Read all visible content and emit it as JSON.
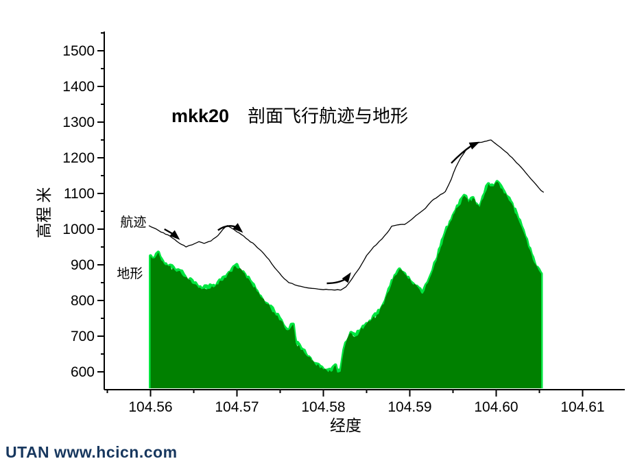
{
  "title": {
    "run_id": "mkk20",
    "text": "剖面飞行航迹与地形"
  },
  "watermark": {
    "text": "UTAN  www.hcicn.com",
    "color": "#17375e"
  },
  "colors": {
    "terrain_fill": "#008000",
    "terrain_edge": "#00e640",
    "trajectory": "#000000",
    "axis": "#000000"
  },
  "chart_data": {
    "type": "area+line",
    "title": "mkk20 剖面飞行航迹与地形",
    "xlabel": "经度",
    "ylabel": "高程  米",
    "x_axis": {
      "min": 104.555,
      "max": 104.6125,
      "major_ticks": [
        104.56,
        104.57,
        104.58,
        104.59,
        104.6,
        104.61
      ],
      "major_labels": [
        "104.56",
        "104.57",
        "104.58",
        "104.59",
        "104.60",
        "104.61"
      ],
      "minor_ticks": [
        104.555,
        104.565,
        104.575,
        104.585,
        104.595,
        104.605
      ]
    },
    "y_axis": {
      "min": 550,
      "max": 1550,
      "major_ticks": [
        600,
        700,
        800,
        900,
        1000,
        1100,
        1200,
        1300,
        1400,
        1500
      ],
      "major_labels": [
        "600",
        "700",
        "800",
        "900",
        "1000",
        "1100",
        "1200",
        "1300",
        "1400",
        "1500"
      ],
      "minor_ticks": [
        650,
        750,
        850,
        950,
        1050,
        1150,
        1250,
        1350,
        1450,
        1550
      ]
    },
    "series": [
      {
        "name": "地形",
        "type": "area",
        "fill_color": "#008000",
        "edge_color": "#00e640",
        "label_pos": {
          "lon": 104.5561,
          "elev": 863
        },
        "points": [
          [
            104.56,
            925
          ],
          [
            104.5603,
            918
          ],
          [
            104.5609,
            935
          ],
          [
            104.5614,
            910
          ],
          [
            104.5621,
            896
          ],
          [
            104.5628,
            885
          ],
          [
            104.5634,
            883
          ],
          [
            104.564,
            866
          ],
          [
            104.565,
            846
          ],
          [
            104.5661,
            833
          ],
          [
            104.5671,
            840
          ],
          [
            104.5682,
            855
          ],
          [
            104.5693,
            880
          ],
          [
            104.5698,
            897
          ],
          [
            104.5707,
            880
          ],
          [
            104.5715,
            855
          ],
          [
            104.5723,
            826
          ],
          [
            104.5727,
            812
          ],
          [
            104.5735,
            790
          ],
          [
            104.5743,
            767
          ],
          [
            104.5751,
            744
          ],
          [
            104.5755,
            725
          ],
          [
            104.5761,
            719
          ],
          [
            104.5765,
            733
          ],
          [
            104.5768,
            681
          ],
          [
            104.5776,
            662
          ],
          [
            104.5783,
            642
          ],
          [
            104.579,
            623
          ],
          [
            104.5798,
            613
          ],
          [
            104.5804,
            604
          ],
          [
            104.5809,
            600
          ],
          [
            104.5814,
            619
          ],
          [
            104.5816,
            598
          ],
          [
            104.582,
            601
          ],
          [
            104.5824,
            662
          ],
          [
            104.5826,
            681
          ],
          [
            104.5832,
            710
          ],
          [
            104.5838,
            700
          ],
          [
            104.5842,
            713
          ],
          [
            104.585,
            735
          ],
          [
            104.5854,
            742
          ],
          [
            104.5862,
            760
          ],
          [
            104.587,
            790
          ],
          [
            104.5878,
            840
          ],
          [
            104.5883,
            870
          ],
          [
            104.5888,
            888
          ],
          [
            104.5894,
            875
          ],
          [
            104.5902,
            850
          ],
          [
            104.591,
            835
          ],
          [
            104.5915,
            819
          ],
          [
            104.5919,
            844
          ],
          [
            104.5925,
            873
          ],
          [
            104.5931,
            912
          ],
          [
            104.5936,
            950
          ],
          [
            104.5941,
            988
          ],
          [
            104.5947,
            1021
          ],
          [
            104.5952,
            1046
          ],
          [
            104.5957,
            1065
          ],
          [
            104.5963,
            1094
          ],
          [
            104.5968,
            1075
          ],
          [
            104.5973,
            1088
          ],
          [
            104.5977,
            1070
          ],
          [
            104.5981,
            1062
          ],
          [
            104.5987,
            1100
          ],
          [
            104.5991,
            1127
          ],
          [
            104.5997,
            1120
          ],
          [
            104.6001,
            1133
          ],
          [
            104.6007,
            1113
          ],
          [
            104.6013,
            1090
          ],
          [
            104.6018,
            1072
          ],
          [
            104.6025,
            1030
          ],
          [
            104.6029,
            1008
          ],
          [
            104.6037,
            950
          ],
          [
            104.6044,
            906
          ],
          [
            104.6051,
            878
          ],
          [
            104.6052,
            875
          ]
        ]
      },
      {
        "name": "航迹",
        "type": "line",
        "color": "#000000",
        "label_pos": {
          "lon": 104.5565,
          "elev": 1008
        },
        "points": [
          [
            104.5598,
            1010
          ],
          [
            104.5604,
            1003
          ],
          [
            104.5612,
            992
          ],
          [
            104.562,
            984
          ],
          [
            104.5628,
            971
          ],
          [
            104.5636,
            957
          ],
          [
            104.5641,
            950
          ],
          [
            104.5648,
            956
          ],
          [
            104.5656,
            965
          ],
          [
            104.5662,
            960
          ],
          [
            104.567,
            967
          ],
          [
            104.5678,
            982
          ],
          [
            104.5684,
            1000
          ],
          [
            104.5689,
            1010
          ],
          [
            104.5697,
            998
          ],
          [
            104.5705,
            985
          ],
          [
            104.5713,
            970
          ],
          [
            104.5721,
            955
          ],
          [
            104.5729,
            937
          ],
          [
            104.5737,
            915
          ],
          [
            104.5744,
            891
          ],
          [
            104.5752,
            868
          ],
          [
            104.576,
            850
          ],
          [
            104.5771,
            841
          ],
          [
            104.5783,
            835
          ],
          [
            104.5794,
            832
          ],
          [
            104.5806,
            830
          ],
          [
            104.582,
            829
          ],
          [
            104.5826,
            838
          ],
          [
            104.5834,
            864
          ],
          [
            104.5842,
            892
          ],
          [
            104.585,
            926
          ],
          [
            104.5858,
            950
          ],
          [
            104.5868,
            973
          ],
          [
            104.5874,
            990
          ],
          [
            104.5879,
            1008
          ],
          [
            104.5886,
            1012
          ],
          [
            104.5894,
            1013
          ],
          [
            104.5902,
            1027
          ],
          [
            104.591,
            1043
          ],
          [
            104.5918,
            1058
          ],
          [
            104.5925,
            1078
          ],
          [
            104.5933,
            1092
          ],
          [
            104.5941,
            1105
          ],
          [
            104.5948,
            1140
          ],
          [
            104.5953,
            1172
          ],
          [
            104.5959,
            1200
          ],
          [
            104.5965,
            1222
          ],
          [
            104.5973,
            1237
          ],
          [
            104.5981,
            1243
          ],
          [
            104.5989,
            1247
          ],
          [
            104.5994,
            1250
          ],
          [
            104.5998,
            1242
          ],
          [
            104.6005,
            1229
          ],
          [
            104.6013,
            1213
          ],
          [
            104.6021,
            1193
          ],
          [
            104.6029,
            1173
          ],
          [
            104.6037,
            1150
          ],
          [
            104.6044,
            1131
          ],
          [
            104.6052,
            1108
          ],
          [
            104.6055,
            1103
          ]
        ]
      }
    ],
    "arrows": [
      {
        "name": "descent-arrow-1",
        "tail": [
          [
            104.5616,
            1000
          ],
          [
            104.5627,
            985
          ]
        ],
        "tip": [
          104.5634,
          970
        ]
      },
      {
        "name": "descent-arrow-2",
        "tail": [
          [
            104.5678,
            997
          ],
          [
            104.5689,
            1016
          ],
          [
            104.57,
            1005
          ]
        ],
        "tip": [
          104.5707,
          990
        ]
      },
      {
        "name": "climb-arrow-1",
        "tail": [
          [
            104.5804,
            848
          ],
          [
            104.5818,
            848
          ],
          [
            104.5827,
            862
          ]
        ],
        "tip": [
          104.5832,
          879
        ]
      },
      {
        "name": "climb-arrow-2",
        "tail": [
          [
            104.5948,
            1185
          ],
          [
            104.596,
            1215
          ],
          [
            104.5972,
            1235
          ]
        ],
        "tip": [
          104.5981,
          1245
        ]
      }
    ],
    "grid": false,
    "legend_position": "inline-labels"
  }
}
